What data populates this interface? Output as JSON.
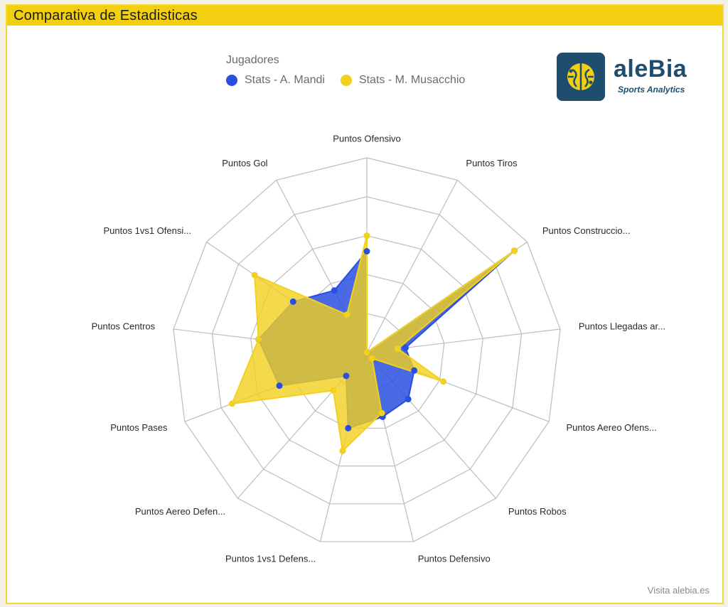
{
  "header": {
    "title": "Comparativa de Estadisticas"
  },
  "legend": {
    "title": "Jugadores"
  },
  "logo": {
    "word": "aleBia",
    "subtitle": "Sports Analytics",
    "icon": "brain-icon"
  },
  "footer": {
    "link": "Visita alebia.es"
  },
  "colors": {
    "accent": "#f2cf10",
    "series1": "#2a4fe0",
    "series2": "#f1d11d"
  },
  "chart_data": {
    "type": "radar",
    "range": [
      0,
      5
    ],
    "rings": 5,
    "categories": [
      "Puntos Ofensivo",
      "Puntos Tiros",
      "Puntos Construccio...",
      "Puntos Llegadas ar...",
      "Puntos Aereo Ofens...",
      "Puntos Robos",
      "Puntos Defensivo",
      "Puntos 1vs1 Defens...",
      "Puntos Aereo Defen...",
      "Puntos Pases",
      "Puntos Centros",
      "Puntos 1vs1 Ofensi...",
      "Puntos Gol"
    ],
    "series": [
      {
        "name": "Stats - A. Mandi",
        "color": "#2a4fe0",
        "values": [
          2.6,
          0.0,
          4.6,
          1.0,
          1.3,
          1.6,
          1.7,
          2.0,
          0.8,
          2.4,
          2.8,
          2.3,
          1.8
        ]
      },
      {
        "name": "Stats - M. Musacchio",
        "color": "#f1d11d",
        "values": [
          3.0,
          0.0,
          4.6,
          0.8,
          2.1,
          0.2,
          1.6,
          2.6,
          1.3,
          3.7,
          2.8,
          3.5,
          1.1
        ]
      }
    ]
  }
}
